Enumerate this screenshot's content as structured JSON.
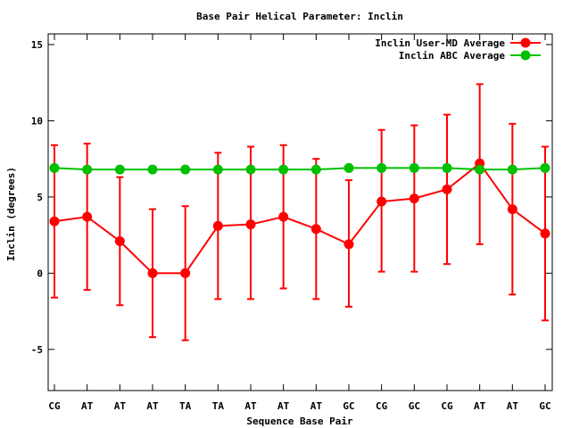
{
  "chart_data": {
    "type": "line",
    "title": "Base Pair Helical Parameter: Inclin",
    "xlabel": "Sequence Base Pair",
    "ylabel": "Inclin (degrees)",
    "categories": [
      "CG",
      "AT",
      "AT",
      "AT",
      "TA",
      "TA",
      "AT",
      "AT",
      "AT",
      "GC",
      "CG",
      "GC",
      "CG",
      "AT",
      "AT",
      "GC"
    ],
    "ylim": [
      -7.7,
      15.7
    ],
    "yticks": [
      15,
      10,
      5,
      0,
      -5
    ],
    "grid": false,
    "legend_position": "top-right",
    "series": [
      {
        "name": "Inclin User-MD Average",
        "color": "#ff0000",
        "values": [
          3.4,
          3.7,
          2.1,
          0.0,
          0.0,
          3.1,
          3.2,
          3.7,
          2.9,
          1.9,
          4.7,
          4.9,
          5.5,
          7.2,
          4.2,
          2.6
        ],
        "error_low": [
          -1.6,
          -1.1,
          -2.1,
          -4.2,
          -4.4,
          -1.7,
          -1.7,
          -1.0,
          -1.7,
          -2.2,
          0.1,
          0.1,
          0.6,
          1.9,
          -1.4,
          -3.1
        ],
        "error_high": [
          8.4,
          8.5,
          6.3,
          4.2,
          4.4,
          7.9,
          8.3,
          8.4,
          7.5,
          6.1,
          9.4,
          9.7,
          10.4,
          12.4,
          9.8,
          8.3
        ]
      },
      {
        "name": "Inclin ABC Average",
        "color": "#00c000",
        "values": [
          6.9,
          6.8,
          6.8,
          6.8,
          6.8,
          6.8,
          6.8,
          6.8,
          6.8,
          6.9,
          6.9,
          6.9,
          6.9,
          6.8,
          6.8,
          6.9
        ]
      }
    ]
  }
}
